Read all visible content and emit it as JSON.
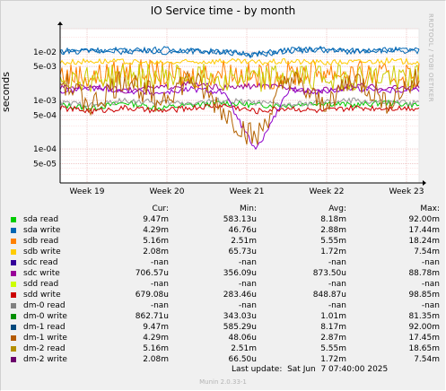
{
  "chart_data": {
    "type": "line",
    "title": "IO Service time - by month",
    "ylabel": "seconds",
    "yscale": "log",
    "ylim": [
      2e-05,
      0.03
    ],
    "y_ticks": [
      {
        "label": "1e-02",
        "value": 0.01
      },
      {
        "label": "5e-03",
        "value": 0.005
      },
      {
        "label": "1e-03",
        "value": 0.001
      },
      {
        "label": "5e-04",
        "value": 0.0005
      },
      {
        "label": "1e-04",
        "value": 0.0001
      },
      {
        "label": "5e-05",
        "value": 5e-05
      }
    ],
    "x_ticks": [
      "Week 19",
      "Week 20",
      "Week 21",
      "Week 22",
      "Week 23"
    ],
    "grid": true,
    "series": [
      {
        "name": "sda read",
        "color": "#00cc00",
        "values": [
          0.0008,
          0.0007,
          0.0009,
          0.0007,
          0.0008,
          0.0009,
          0.0008,
          0.0008,
          0.0009,
          0.0008,
          0.0009,
          0.0008
        ]
      },
      {
        "name": "sda write",
        "color": "#0066b3",
        "values": [
          0.0105,
          0.011,
          0.01,
          0.0115,
          0.0105,
          0.01,
          0.009,
          0.011,
          0.0115,
          0.0105,
          0.011,
          0.0108
        ]
      },
      {
        "name": "sdb read",
        "color": "#ff8000",
        "values": [
          0.0035,
          0.003,
          0.004,
          0.0035,
          0.003,
          0.004,
          0.003,
          0.0035,
          0.004,
          0.0035,
          0.003,
          0.0035
        ]
      },
      {
        "name": "sdb write",
        "color": "#ffcc00",
        "values": [
          0.006,
          0.0065,
          0.0062,
          0.0058,
          0.0062,
          0.0065,
          0.006,
          0.0064,
          0.006,
          0.0062,
          0.0065,
          0.0062
        ]
      },
      {
        "name": "sdc write",
        "color": "#990099",
        "values": [
          0.0018,
          0.002,
          0.0016,
          0.0018,
          0.0022,
          0.0018,
          0.002,
          0.0018,
          0.0016,
          0.002,
          0.0018,
          0.0019
        ]
      },
      {
        "name": "sdd write",
        "color": "#cc0000",
        "values": [
          0.0007,
          0.0006,
          0.0007,
          0.0006,
          0.0007,
          0.0008,
          0.0006,
          0.0007,
          0.0006,
          0.0007,
          0.0007,
          0.0007
        ]
      },
      {
        "name": "dm-0 write",
        "color": "#999999",
        "values": [
          0.0009,
          0.0008,
          0.001,
          0.0009,
          0.0009,
          0.001,
          0.0009,
          0.0008,
          0.0009,
          0.001,
          0.0009,
          0.0009
        ]
      },
      {
        "name": "dm-1 read",
        "color": "#0066b3",
        "values": [
          0.01,
          0.0105,
          0.011,
          0.0098,
          0.0105,
          0.01,
          0.0085,
          0.0105,
          0.011,
          0.01,
          0.0105,
          0.0102
        ]
      },
      {
        "name": "dm-1 write",
        "color": "#8f00cc",
        "values": [
          0.0015,
          0.0018,
          0.0016,
          0.0014,
          0.0017,
          0.0015,
          9e-05,
          0.0016,
          0.0015,
          0.0018,
          0.0016,
          0.0017
        ]
      },
      {
        "name": "dm-2 read",
        "color": "#cccc00",
        "values": [
          0.003,
          0.0028,
          0.0032,
          0.0029,
          0.0031,
          0.003,
          0.0028,
          0.003,
          0.0032,
          0.0029,
          0.003,
          0.0031
        ]
      },
      {
        "name": "dm-2 write",
        "color": "#b36200",
        "values": [
          0.0025,
          0.0008,
          0.003,
          0.001,
          0.0028,
          0.0006,
          0.00015,
          0.003,
          0.0008,
          0.0028,
          0.001,
          0.0026
        ]
      }
    ]
  },
  "side_label": "RRDTOOL / TOBI OETIKER",
  "legend": {
    "headers": {
      "cur": "Cur:",
      "min": "Min:",
      "avg": "Avg:",
      "max": "Max:"
    },
    "rows": [
      {
        "name": "sda read",
        "color": "#00cc00",
        "cur": "9.47m",
        "min": "583.13u",
        "avg": "8.18m",
        "max": "92.00m"
      },
      {
        "name": "sda write",
        "color": "#0066b3",
        "cur": "4.29m",
        "min": "46.76u",
        "avg": "2.88m",
        "max": "17.44m"
      },
      {
        "name": "sdb read",
        "color": "#ff8000",
        "cur": "5.16m",
        "min": "2.51m",
        "avg": "5.55m",
        "max": "18.24m"
      },
      {
        "name": "sdb write",
        "color": "#ffcc00",
        "cur": "2.08m",
        "min": "65.73u",
        "avg": "1.72m",
        "max": "7.54m"
      },
      {
        "name": "sdc read",
        "color": "#330099",
        "cur": "-nan",
        "min": "-nan",
        "avg": "-nan",
        "max": "-nan"
      },
      {
        "name": "sdc write",
        "color": "#990099",
        "cur": "706.57u",
        "min": "356.09u",
        "avg": "873.50u",
        "max": "88.78m"
      },
      {
        "name": "sdd read",
        "color": "#ccff00",
        "cur": "-nan",
        "min": "-nan",
        "avg": "-nan",
        "max": "-nan"
      },
      {
        "name": "sdd write",
        "color": "#cc0000",
        "cur": "679.08u",
        "min": "283.46u",
        "avg": "848.87u",
        "max": "98.85m"
      },
      {
        "name": "dm-0 read",
        "color": "#808080",
        "cur": "-nan",
        "min": "-nan",
        "avg": "-nan",
        "max": "-nan"
      },
      {
        "name": "dm-0 write",
        "color": "#008f00",
        "cur": "862.71u",
        "min": "343.03u",
        "avg": "1.01m",
        "max": "81.35m"
      },
      {
        "name": "dm-1 read",
        "color": "#00487d",
        "cur": "9.47m",
        "min": "585.29u",
        "avg": "8.17m",
        "max": "92.00m"
      },
      {
        "name": "dm-1 write",
        "color": "#b35a00",
        "cur": "4.29m",
        "min": "48.06u",
        "avg": "2.87m",
        "max": "17.45m"
      },
      {
        "name": "dm-2 read",
        "color": "#b38f00",
        "cur": "5.16m",
        "min": "2.51m",
        "avg": "5.55m",
        "max": "18.65m"
      },
      {
        "name": "dm-2 write",
        "color": "#6b006b",
        "cur": "2.08m",
        "min": "66.50u",
        "avg": "1.72m",
        "max": "7.54m"
      }
    ]
  },
  "last_update": "Last update:  Sat Jun  7 07:40:00 2025",
  "version": "Munin 2.0.33-1"
}
